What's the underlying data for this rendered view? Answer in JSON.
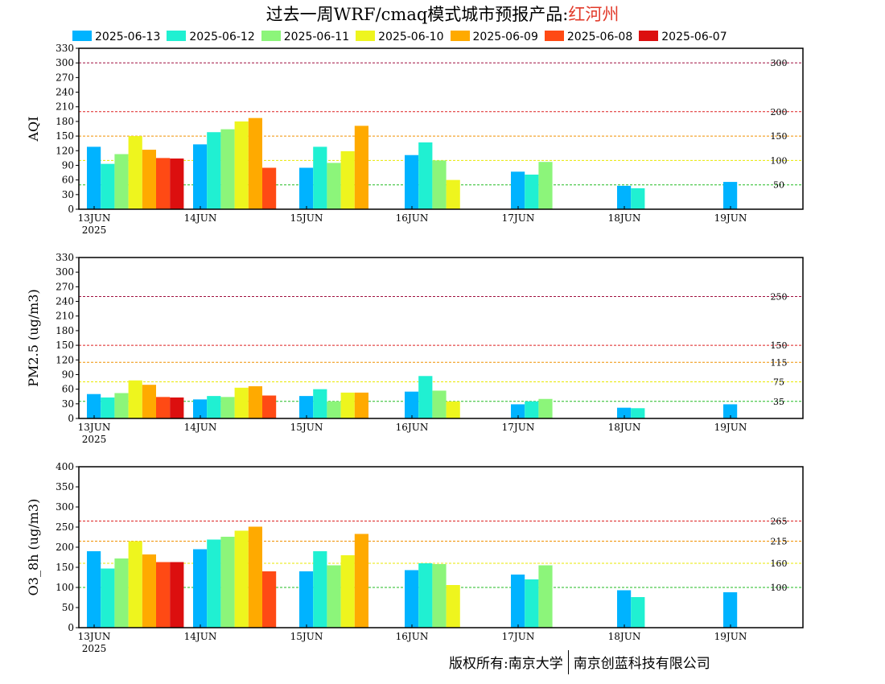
{
  "title": {
    "text": "过去一周WRF/cmaq模式城市预报产品:",
    "city": "红河州"
  },
  "legend": [
    {
      "label": "2025-06-13",
      "color": "#00b3ff"
    },
    {
      "label": "2025-06-12",
      "color": "#20f0d2"
    },
    {
      "label": "2025-06-11",
      "color": "#8cf57a"
    },
    {
      "label": "2025-06-10",
      "color": "#eef51e"
    },
    {
      "label": "2025-06-09",
      "color": "#ffaa00"
    },
    {
      "label": "2025-06-08",
      "color": "#ff4a14"
    },
    {
      "label": "2025-06-07",
      "color": "#dc0f0f"
    }
  ],
  "footer": {
    "left": "版权所有:南京大学",
    "right": "南京创蓝科技有限公司"
  },
  "chart_data": [
    {
      "type": "bar",
      "ylabel": "AQI",
      "ylim": [
        0,
        330
      ],
      "yticks": [
        0,
        30,
        60,
        90,
        120,
        150,
        180,
        210,
        240,
        270,
        300,
        330
      ],
      "categories": [
        "13JUN",
        "14JUN",
        "15JUN",
        "16JUN",
        "17JUN",
        "18JUN",
        "19JUN"
      ],
      "year_label": "2025",
      "thresholds": [
        {
          "value": 50,
          "label": "50",
          "color": "#22bb22"
        },
        {
          "value": 100,
          "label": "100",
          "color": "#e8e800"
        },
        {
          "value": 150,
          "label": "150",
          "color": "#f09000"
        },
        {
          "value": 200,
          "label": "200",
          "color": "#dd2222"
        },
        {
          "value": 300,
          "label": "300",
          "color": "#a01040"
        }
      ],
      "groups": [
        [
          128,
          93,
          113,
          150,
          122,
          105,
          104
        ],
        [
          133,
          158,
          164,
          180,
          187,
          85
        ],
        [
          85,
          128,
          95,
          119,
          171
        ],
        [
          111,
          137,
          100,
          60
        ],
        [
          77,
          71,
          97
        ],
        [
          48,
          43
        ],
        [
          56
        ]
      ]
    },
    {
      "type": "bar",
      "ylabel": "PM2.5 (ug/m3)",
      "ylim": [
        0,
        330
      ],
      "yticks": [
        0,
        30,
        60,
        90,
        120,
        150,
        180,
        210,
        240,
        270,
        300,
        330
      ],
      "categories": [
        "13JUN",
        "14JUN",
        "15JUN",
        "16JUN",
        "17JUN",
        "18JUN",
        "19JUN"
      ],
      "year_label": "2025",
      "thresholds": [
        {
          "value": 35,
          "label": "35",
          "color": "#22bb22"
        },
        {
          "value": 75,
          "label": "75",
          "color": "#e8e800"
        },
        {
          "value": 115,
          "label": "115",
          "color": "#f09000"
        },
        {
          "value": 150,
          "label": "150",
          "color": "#dd2222"
        },
        {
          "value": 250,
          "label": "250",
          "color": "#a01040"
        }
      ],
      "groups": [
        [
          50,
          43,
          52,
          78,
          69,
          44,
          43
        ],
        [
          39,
          46,
          44,
          63,
          66,
          47
        ],
        [
          46,
          60,
          35,
          53,
          53
        ],
        [
          55,
          87,
          57,
          35
        ],
        [
          29,
          35,
          40
        ],
        [
          22,
          21
        ],
        [
          29
        ]
      ]
    },
    {
      "type": "bar",
      "ylabel": "O3_8h (ug/m3)",
      "ylim": [
        0,
        400
      ],
      "yticks": [
        0,
        50,
        100,
        150,
        200,
        250,
        300,
        350,
        400
      ],
      "categories": [
        "13JUN",
        "14JUN",
        "15JUN",
        "16JUN",
        "17JUN",
        "18JUN",
        "19JUN"
      ],
      "year_label": "2025",
      "thresholds": [
        {
          "value": 100,
          "label": "100",
          "color": "#22bb22"
        },
        {
          "value": 160,
          "label": "160",
          "color": "#e8e800"
        },
        {
          "value": 215,
          "label": "215",
          "color": "#f09000"
        },
        {
          "value": 265,
          "label": "265",
          "color": "#dd2222"
        }
      ],
      "groups": [
        [
          190,
          147,
          172,
          215,
          182,
          163,
          163
        ],
        [
          195,
          219,
          226,
          241,
          251,
          140
        ],
        [
          140,
          190,
          155,
          180,
          233
        ],
        [
          143,
          160,
          158,
          106
        ],
        [
          132,
          120,
          155
        ],
        [
          93,
          76
        ],
        [
          88
        ]
      ]
    }
  ]
}
